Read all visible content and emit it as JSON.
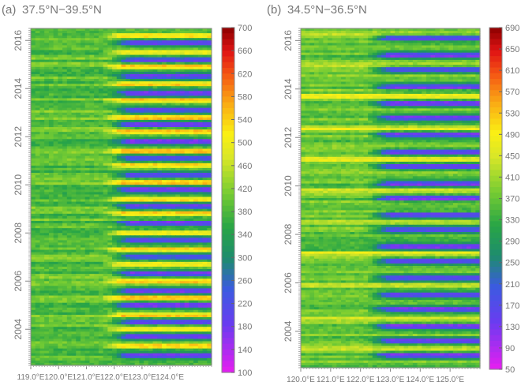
{
  "chart_data": [
    {
      "type": "heatmap",
      "panel_label": "(a)",
      "title": "37.5°N−39.5°N",
      "xlabel": "",
      "ylabel": "",
      "x_ticks": [
        "119.0°E",
        "120.0°E",
        "121.0°E",
        "122.0°E",
        "123.0°E",
        "124.0°E"
      ],
      "x_tick_values": [
        119.0,
        120.0,
        121.0,
        122.0,
        123.0,
        124.0
      ],
      "xlim": [
        119.0,
        125.5
      ],
      "y_ticks": [
        "2004",
        "2006",
        "2008",
        "2010",
        "2012",
        "2014",
        "2016"
      ],
      "y_tick_values": [
        2004,
        2006,
        2008,
        2010,
        2012,
        2014,
        2016
      ],
      "ylim": [
        2002.5,
        2016.5
      ],
      "colorbar_ticks": [
        "100",
        "140",
        "180",
        "220",
        "260",
        "300",
        "340",
        "380",
        "420",
        "460",
        "500",
        "540",
        "580",
        "620",
        "660",
        "700"
      ],
      "value_range": [
        100,
        700
      ],
      "pattern": {
        "base_value": 390,
        "east_low_bands": {
          "start_lon": 121.8,
          "low_value": 180,
          "years": [
            2002.9,
            2003.7,
            2004.3,
            2005.0,
            2005.6,
            2006.3,
            2007.0,
            2007.7,
            2008.4,
            2009.1,
            2009.8,
            2010.4,
            2011.1,
            2011.8,
            2012.5,
            2013.1,
            2013.8,
            2014.5,
            2015.2,
            2015.9
          ]
        },
        "east_high_bands": {
          "start_lon": 121.5,
          "high_value": 640,
          "years": [
            2003.3,
            2004.0,
            2004.6,
            2005.3,
            2006.0,
            2006.7,
            2007.3,
            2008.0,
            2008.8,
            2009.4,
            2010.1,
            2010.8,
            2011.4,
            2012.2,
            2012.8,
            2013.5,
            2014.2,
            2014.9,
            2015.5,
            2016.2
          ]
        }
      }
    },
    {
      "type": "heatmap",
      "panel_label": "(b)",
      "title": "34.5°N−36.5°N",
      "xlabel": "",
      "ylabel": "",
      "x_ticks": [
        "120.0°E",
        "121.0°E",
        "122.0°E",
        "123.0°E",
        "124.0°E",
        "125.0°E"
      ],
      "x_tick_values": [
        120.0,
        121.0,
        122.0,
        123.0,
        124.0,
        125.0
      ],
      "xlim": [
        120.0,
        126.0
      ],
      "y_ticks": [
        "2004",
        "2006",
        "2008",
        "2010",
        "2012",
        "2014",
        "2016"
      ],
      "y_tick_values": [
        2004,
        2006,
        2008,
        2010,
        2012,
        2014,
        2016
      ],
      "ylim": [
        2002.5,
        2016.5
      ],
      "colorbar_ticks": [
        "50",
        "90",
        "130",
        "170",
        "210",
        "250",
        "290",
        "330",
        "370",
        "410",
        "450",
        "490",
        "530",
        "570",
        "610",
        "650",
        "690"
      ],
      "value_range": [
        50,
        710
      ],
      "pattern": {
        "base_value": 380,
        "east_low_bands": {
          "start_lon": 122.2,
          "low_value": 130,
          "years": [
            2003.0,
            2003.6,
            2004.2,
            2004.9,
            2005.5,
            2006.2,
            2006.9,
            2007.5,
            2008.2,
            2008.8,
            2009.5,
            2010.1,
            2010.8,
            2011.4,
            2012.1,
            2012.8,
            2013.4,
            2014.1,
            2014.8,
            2015.4,
            2016.1
          ]
        },
        "west_warm_bands": {
          "high_value": 510,
          "years": [
            2003.3,
            2004.5,
            2005.9,
            2007.2,
            2008.5,
            2009.8,
            2011.1,
            2012.4,
            2013.7,
            2015.0,
            2016.3
          ]
        }
      }
    }
  ]
}
